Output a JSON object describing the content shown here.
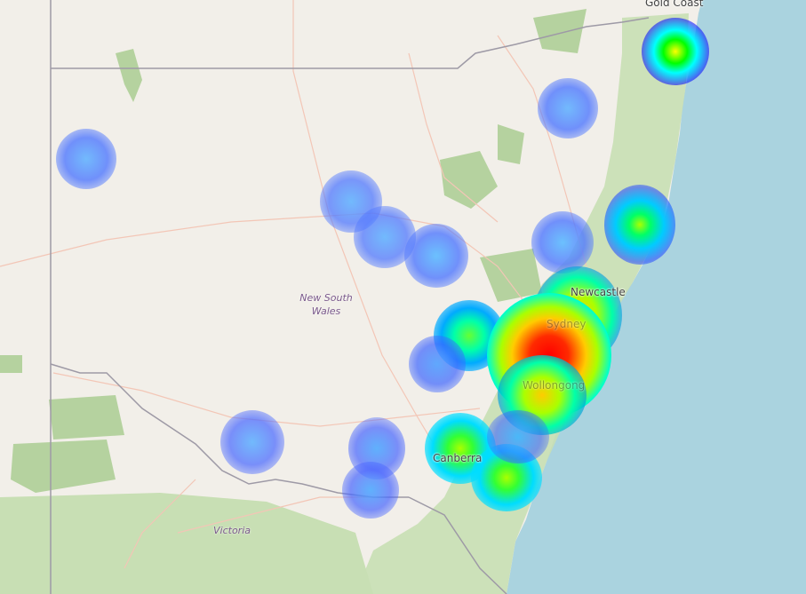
{
  "map": {
    "labels": {
      "gold_coast": "Gold Coast",
      "newcastle": "Newcastle",
      "sydney": "Sydney",
      "wollongong": "Wollongong",
      "canberra": "Canberra",
      "nsw_line1": "New South",
      "nsw_line2": "Wales",
      "victoria": "Victoria"
    },
    "colors": {
      "land": "#f2efe9",
      "water": "#aad3df",
      "forest": "#c8dfb4",
      "park": "#b5d29f",
      "border": "#9e9aa6",
      "road": "#f3c6b6"
    },
    "heatmap": {
      "gradient": [
        "#0000ff",
        "#00ffff",
        "#00ff00",
        "#ffff00",
        "#ff0000"
      ]
    }
  }
}
